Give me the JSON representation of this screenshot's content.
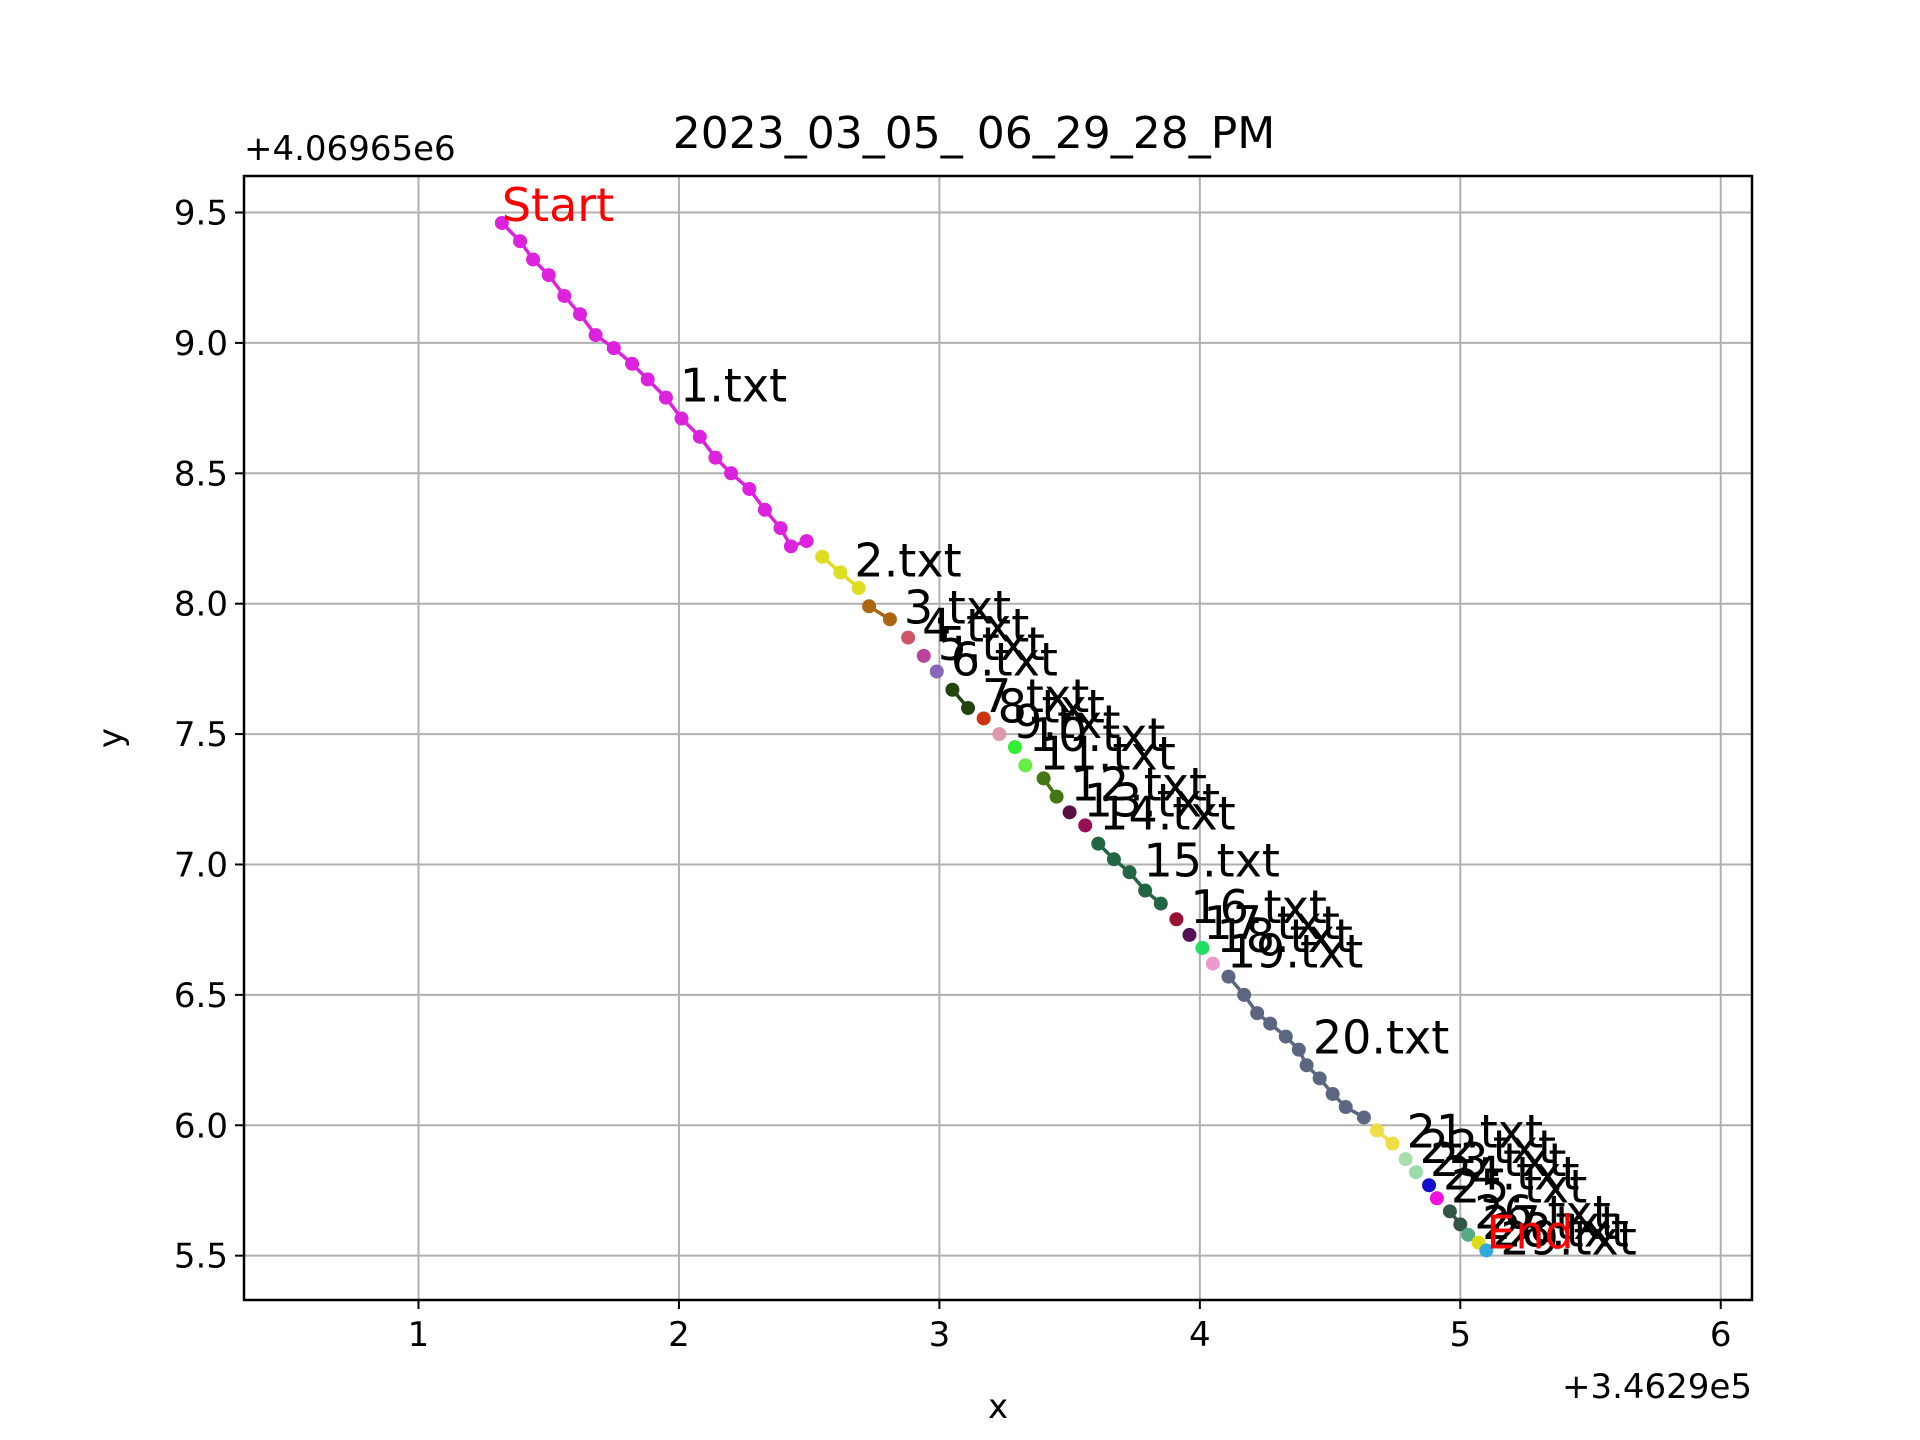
{
  "chart_data": {
    "type": "line",
    "title": "2023_03_05_ 06_29_28_PM",
    "xlabel": "x",
    "ylabel": "y",
    "x_offset_label": "+3.4629e5",
    "y_offset_label": "+4.06965e6",
    "xlim": [
      0.33,
      6.12
    ],
    "ylim": [
      5.33,
      9.64
    ],
    "grid": true,
    "x_ticks": [
      {
        "value": 1,
        "label": "1"
      },
      {
        "value": 2,
        "label": "2"
      },
      {
        "value": 3,
        "label": "3"
      },
      {
        "value": 4,
        "label": "4"
      },
      {
        "value": 5,
        "label": "5"
      },
      {
        "value": 6,
        "label": "6"
      }
    ],
    "y_ticks": [
      {
        "value": 5.5,
        "label": "5.5"
      },
      {
        "value": 6.0,
        "label": "6.0"
      },
      {
        "value": 6.5,
        "label": "6.5"
      },
      {
        "value": 7.0,
        "label": "7.0"
      },
      {
        "value": 7.5,
        "label": "7.5"
      },
      {
        "value": 8.0,
        "label": "8.0"
      },
      {
        "value": 8.5,
        "label": "8.5"
      },
      {
        "value": 9.0,
        "label": "9.0"
      },
      {
        "value": 9.5,
        "label": "9.5"
      }
    ],
    "start_marker": {
      "label": "Start",
      "x": 1.32,
      "y": 9.46
    },
    "end_marker": {
      "label": "End",
      "x": 5.1,
      "y": 5.52
    },
    "series": [
      {
        "name": "1.txt",
        "color": "#dd22dd",
        "x": [
          1.32,
          1.39,
          1.44,
          1.5,
          1.56,
          1.62,
          1.68,
          1.75,
          1.82,
          1.88,
          1.95,
          2.01,
          2.08,
          2.14,
          2.2,
          2.27,
          2.33,
          2.39,
          2.43,
          2.49
        ],
        "y": [
          9.46,
          9.39,
          9.32,
          9.26,
          9.18,
          9.11,
          9.03,
          8.98,
          8.92,
          8.86,
          8.79,
          8.71,
          8.64,
          8.56,
          8.5,
          8.44,
          8.36,
          8.29,
          8.22,
          8.24
        ]
      },
      {
        "name": "2.txt",
        "color": "#dddd22",
        "x": [
          2.55,
          2.62,
          2.69
        ],
        "y": [
          8.18,
          8.12,
          8.06
        ]
      },
      {
        "name": "3.txt",
        "color": "#aa6611",
        "x": [
          2.73,
          2.81
        ],
        "y": [
          7.99,
          7.94
        ]
      },
      {
        "name": "4.txt",
        "color": "#cc5566",
        "x": [
          2.88
        ],
        "y": [
          7.87
        ]
      },
      {
        "name": "5.txt",
        "color": "#bb4499",
        "x": [
          2.94
        ],
        "y": [
          7.8
        ]
      },
      {
        "name": "6.txt",
        "color": "#8866bb",
        "x": [
          2.99
        ],
        "y": [
          7.74
        ]
      },
      {
        "name": "7.txt",
        "color": "#224411",
        "x": [
          3.05,
          3.11
        ],
        "y": [
          7.67,
          7.6
        ]
      },
      {
        "name": "8.txt",
        "color": "#cc3311",
        "x": [
          3.17
        ],
        "y": [
          7.56
        ]
      },
      {
        "name": "9.txt",
        "color": "#dd99aa",
        "x": [
          3.23
        ],
        "y": [
          7.5
        ]
      },
      {
        "name": "10.txt",
        "color": "#33ee33",
        "x": [
          3.29
        ],
        "y": [
          7.45
        ]
      },
      {
        "name": "11.txt",
        "color": "#66ee44",
        "x": [
          3.33
        ],
        "y": [
          7.38
        ]
      },
      {
        "name": "12.txt",
        "color": "#447711",
        "x": [
          3.4,
          3.45
        ],
        "y": [
          7.33,
          7.26
        ]
      },
      {
        "name": "13.txt",
        "color": "#551144",
        "x": [
          3.5
        ],
        "y": [
          7.2
        ]
      },
      {
        "name": "14.txt",
        "color": "#991155",
        "x": [
          3.56
        ],
        "y": [
          7.15
        ]
      },
      {
        "name": "15.txt",
        "color": "#226644",
        "x": [
          3.61,
          3.67,
          3.73,
          3.79,
          3.85
        ],
        "y": [
          7.08,
          7.02,
          6.97,
          6.9,
          6.85
        ]
      },
      {
        "name": "16.txt",
        "color": "#991133",
        "x": [
          3.91
        ],
        "y": [
          6.79
        ]
      },
      {
        "name": "17.txt",
        "color": "#551155",
        "x": [
          3.96
        ],
        "y": [
          6.73
        ]
      },
      {
        "name": "18.txt",
        "color": "#22dd66",
        "x": [
          4.01
        ],
        "y": [
          6.68
        ]
      },
      {
        "name": "19.txt",
        "color": "#ee99cc",
        "x": [
          4.05
        ],
        "y": [
          6.62
        ]
      },
      {
        "name": "20.txt",
        "color": "#5c6680",
        "x": [
          4.11,
          4.17,
          4.22,
          4.27,
          4.33,
          4.38,
          4.41,
          4.46,
          4.51,
          4.56,
          4.63
        ],
        "y": [
          6.57,
          6.5,
          6.43,
          6.39,
          6.34,
          6.29,
          6.23,
          6.18,
          6.12,
          6.07,
          6.03
        ]
      },
      {
        "name": "21.txt",
        "color": "#eedd44",
        "x": [
          4.68,
          4.74
        ],
        "y": [
          5.98,
          5.93
        ]
      },
      {
        "name": "22.txt",
        "color": "#aaddaa",
        "x": [
          4.79
        ],
        "y": [
          5.87
        ]
      },
      {
        "name": "23.txt",
        "color": "#99ddaa",
        "x": [
          4.83
        ],
        "y": [
          5.82
        ]
      },
      {
        "name": "24.txt",
        "color": "#1111cc",
        "x": [
          4.88
        ],
        "y": [
          5.77
        ]
      },
      {
        "name": "25.txt",
        "color": "#ee11dd",
        "x": [
          4.91
        ],
        "y": [
          5.72
        ]
      },
      {
        "name": "26.txt",
        "color": "#335544",
        "x": [
          4.96,
          5.0
        ],
        "y": [
          5.67,
          5.62
        ]
      },
      {
        "name": "27.txt",
        "color": "#55aa88",
        "x": [
          5.03
        ],
        "y": [
          5.58
        ]
      },
      {
        "name": "28.txt",
        "color": "#dddd11",
        "x": [
          5.07
        ],
        "y": [
          5.55
        ]
      },
      {
        "name": "29.txt",
        "color": "#33aadd",
        "x": [
          5.1
        ],
        "y": [
          5.52
        ]
      }
    ]
  }
}
